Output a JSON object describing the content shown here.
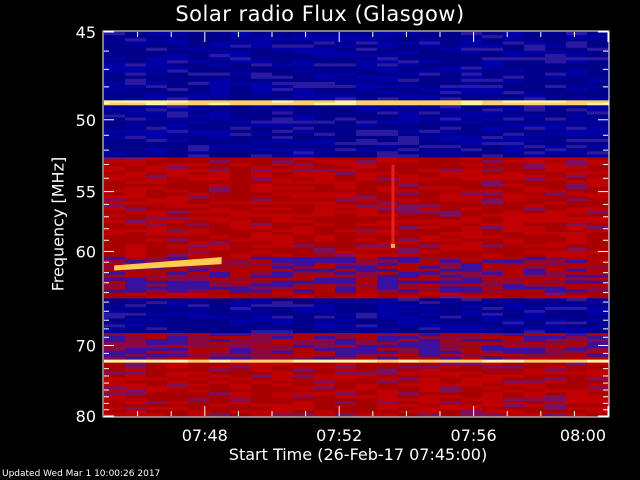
{
  "chart_data": {
    "type": "heatmap",
    "title": "Solar radio Flux (Glasgow)",
    "ylabel": "Frequency [MHz]",
    "xlabel": "Start Time (26-Feb-17 07:45:00)",
    "ylim": [
      45,
      80
    ],
    "y_ticks": [
      45,
      50,
      55,
      60,
      70,
      80
    ],
    "y_tick_labels": [
      "45",
      "50",
      "55",
      "60",
      "70",
      "80"
    ],
    "xlim_minutes_after_0745": [
      0,
      15
    ],
    "x_ticks": [
      "07:48",
      "07:52",
      "07:56",
      "08:00"
    ],
    "x_tick_minutes": [
      3,
      7,
      11,
      15
    ],
    "colors": {
      "low": "#0000a0",
      "mid": "#c00000",
      "high": "#fff2a0"
    },
    "frequency_bands": [
      {
        "from": 45,
        "to": 46.5,
        "level": "low"
      },
      {
        "from": 46.5,
        "to": 48.8,
        "level": "low"
      },
      {
        "from": 48.8,
        "to": 49.1,
        "level": "high"
      },
      {
        "from": 49.1,
        "to": 52.5,
        "level": "low"
      },
      {
        "from": 52.5,
        "to": 53.1,
        "level": "mid"
      },
      {
        "from": 53.1,
        "to": 56.0,
        "level": "mid"
      },
      {
        "from": 56.0,
        "to": 60.5,
        "level": "mid"
      },
      {
        "from": 60.5,
        "to": 64.0,
        "level": "mixed"
      },
      {
        "from": 64.0,
        "to": 64.6,
        "level": "mid"
      },
      {
        "from": 64.6,
        "to": 68.5,
        "level": "low"
      },
      {
        "from": 68.5,
        "to": 71.8,
        "level": "mixed"
      },
      {
        "from": 71.8,
        "to": 72.2,
        "level": "high"
      },
      {
        "from": 72.2,
        "to": 80,
        "level": "mid"
      }
    ],
    "features": [
      {
        "name": "drifting burst",
        "start_min": 0.3,
        "end_min": 3.5,
        "freq_start": 61.5,
        "freq_end": 60.9
      },
      {
        "name": "vertical spike",
        "time_min": 8.6,
        "freq_from": 53.0,
        "freq_to": 59.5
      }
    ]
  },
  "footer": "Updated Wed Mar  1 10:00:26 2017"
}
